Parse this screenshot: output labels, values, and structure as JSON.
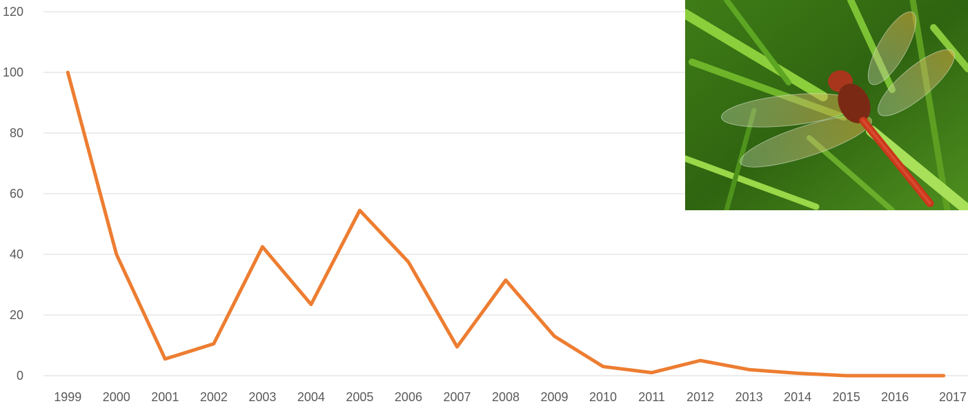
{
  "chart_data": {
    "type": "line",
    "title": "",
    "xlabel": "",
    "ylabel": "",
    "x": [
      "1999",
      "2000",
      "2001",
      "2002",
      "2003",
      "2004",
      "2005",
      "2006",
      "2007",
      "2008",
      "2009",
      "2010",
      "2011",
      "2012",
      "2013",
      "2014",
      "2015",
      "2016",
      "2017"
    ],
    "series": [
      {
        "values": [
          100,
          40,
          5.5,
          10.5,
          42.5,
          23.5,
          54.5,
          37.5,
          9.5,
          31.5,
          13,
          3,
          1,
          5,
          2,
          0.8,
          0,
          0,
          0
        ]
      }
    ],
    "ylim": [
      0,
      120
    ],
    "yticks": [
      0,
      20,
      40,
      60,
      80,
      100,
      120
    ],
    "grid": true,
    "legend": "none",
    "colors": {
      "line": "#ed7d31",
      "grid": "#d9d9d9",
      "tick_text": "#595959"
    }
  },
  "photo": {
    "subject": "dragonfly",
    "icon": "dragonfly-photo"
  }
}
